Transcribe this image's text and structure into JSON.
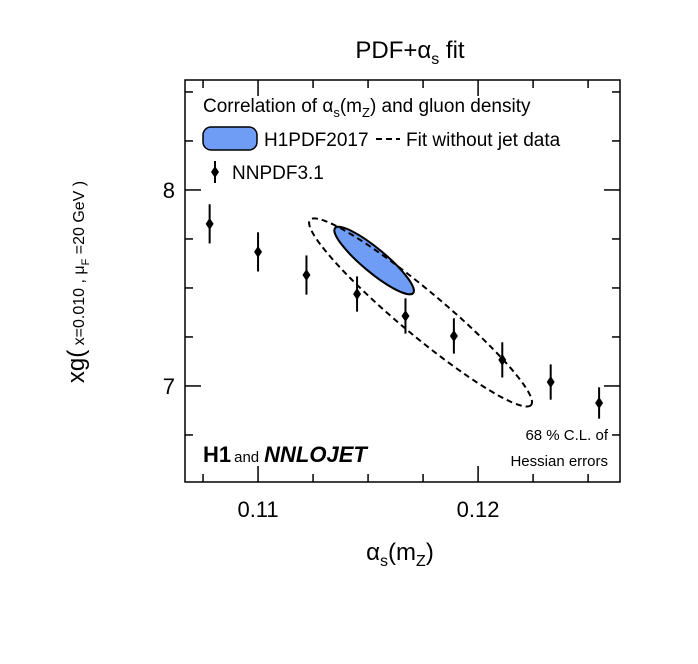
{
  "chart_data": {
    "type": "scatter",
    "title": [
      "PDF+α",
      "s",
      " fit"
    ],
    "x_label": [
      "α",
      "s",
      "(m",
      "Z",
      ")"
    ],
    "y_label": [
      "xg(",
      " x=0.010 , μ",
      "F",
      " =20 GeV )"
    ],
    "legend_title": [
      "Correlation of α",
      "s",
      "(m",
      "Z",
      ") and gluon density"
    ],
    "xlim": [
      0.10668,
      0.12645
    ],
    "ylim": [
      6.51,
      8.561
    ],
    "xticks": [
      0.11,
      0.12
    ],
    "yticks": [
      7,
      8
    ],
    "xminor": [
      0.1075,
      0.1125,
      0.115,
      0.1175,
      0.1225,
      0.125
    ],
    "yminor": [
      6.75,
      7.25,
      7.5,
      7.75,
      8.25,
      8.5
    ],
    "series": [
      {
        "name": "NNPDF3.1",
        "color": "#000000",
        "x": [
          0.1078,
          0.11,
          0.1122,
          0.1145,
          0.1167,
          0.1189,
          0.1211,
          0.1233,
          0.1255
        ],
        "values": [
          7.827,
          7.684,
          7.566,
          7.469,
          7.357,
          7.255,
          7.133,
          7.02,
          6.913
        ],
        "errors": [
          0.1,
          0.1,
          0.1,
          0.09,
          0.09,
          0.09,
          0.09,
          0.09,
          0.08
        ]
      }
    ],
    "ellipses": [
      {
        "name": "H1PDF2017",
        "color": "#6f9df5",
        "style": "solid",
        "major": [
          [
            0.1135,
            7.806
          ],
          [
            0.11705,
            7.474
          ]
        ],
        "minor_end": [
          0.11564,
          7.684
        ]
      },
      {
        "name": "Fit without jet data",
        "color": "#000000",
        "style": "dashed",
        "major": [
          [
            0.11236,
            7.847
          ],
          [
            0.12241,
            6.903
          ]
        ],
        "minor_end": [
          0.118,
          7.464
        ]
      }
    ],
    "annotations": {
      "h1": "H1",
      "and": "and",
      "nnlojet": "NNLOJET",
      "cl": "68 % C.L. of",
      "hessian": "Hessian errors"
    }
  }
}
